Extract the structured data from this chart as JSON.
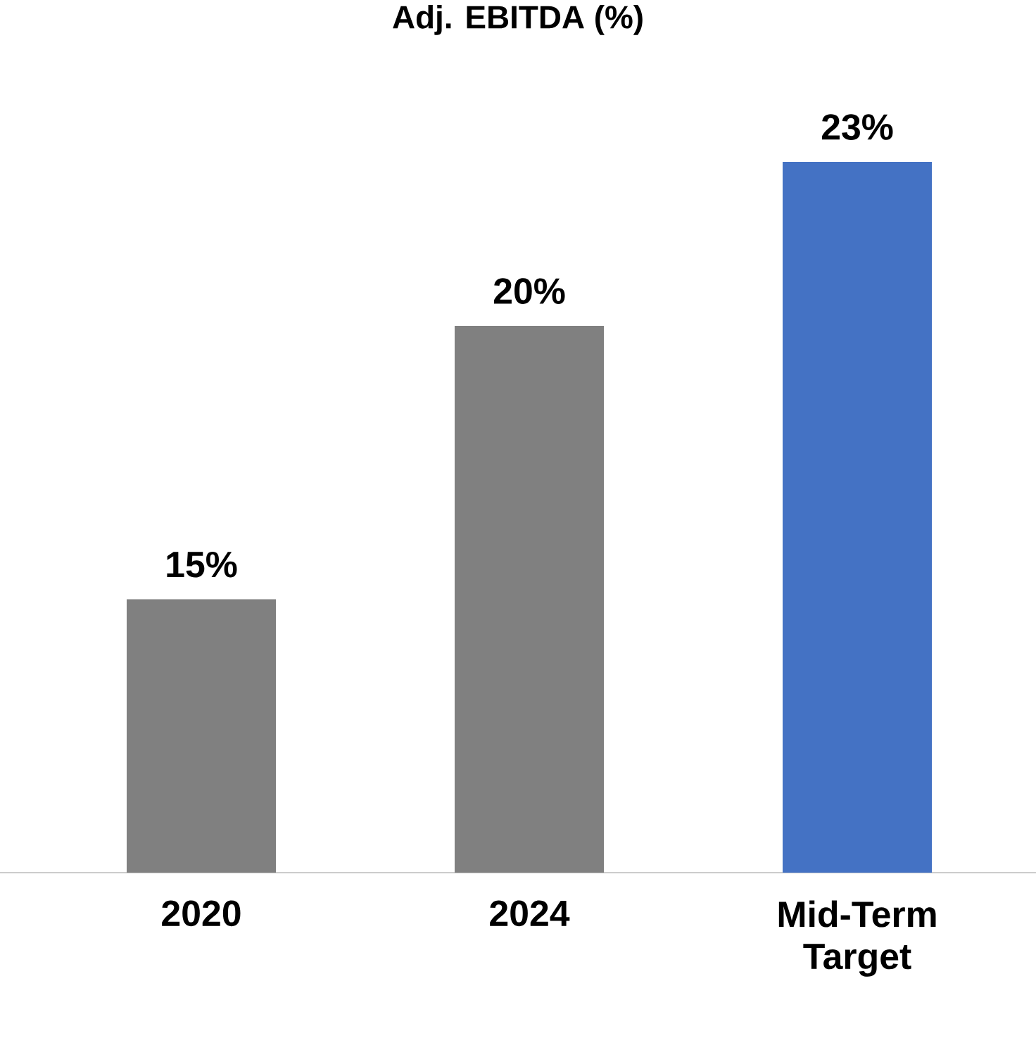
{
  "chart_data": {
    "type": "bar",
    "title": "Adj. EBITDA (%)",
    "categories": [
      "2020",
      "2024",
      "Mid-Term Target"
    ],
    "values": [
      15,
      20,
      23
    ],
    "colors": [
      "#808080",
      "#808080",
      "#4472c4"
    ],
    "value_labels": [
      "15%",
      "20%",
      "23%"
    ],
    "ylim": [
      10,
      23
    ]
  }
}
